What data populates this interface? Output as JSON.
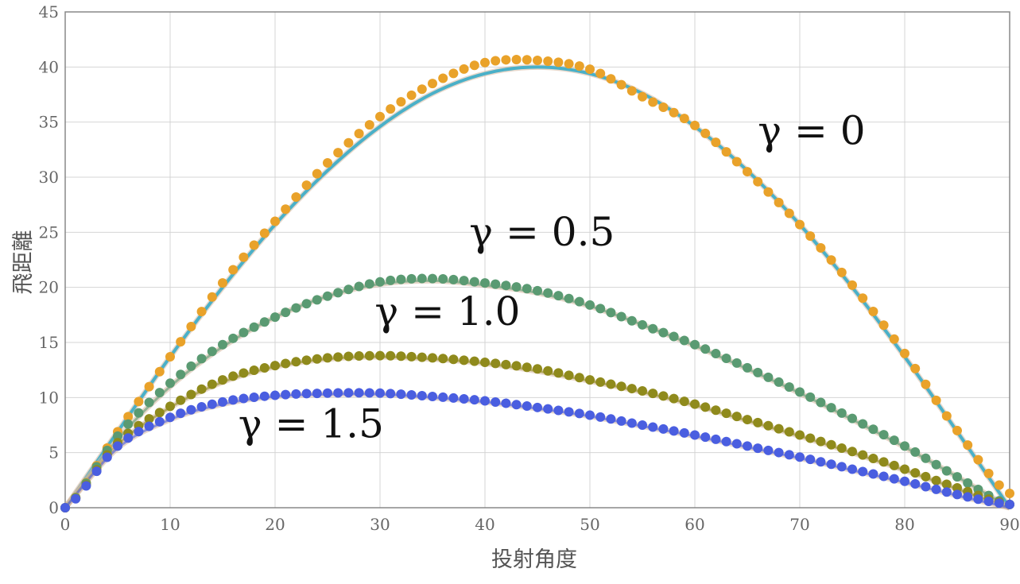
{
  "chart_data": {
    "type": "scatter",
    "title": "",
    "xlabel": "投射角度",
    "ylabel": "飛距離",
    "xlim": [
      0,
      90
    ],
    "ylim": [
      0,
      45
    ],
    "xticks": [
      0,
      10,
      20,
      30,
      40,
      50,
      60,
      70,
      80,
      90
    ],
    "yticks": [
      0,
      5,
      10,
      15,
      20,
      25,
      30,
      35,
      40,
      45
    ],
    "grid": true,
    "legend": "none",
    "series": [
      {
        "label": "γ = 0",
        "label_position": [
          66,
          33
        ],
        "gamma": 0,
        "color": "#e9a22a",
        "curve_color": "#4ab0c8",
        "x": [
          0,
          5,
          10,
          15,
          20,
          25,
          30,
          35,
          40,
          45,
          50,
          55,
          60,
          65,
          70,
          75,
          80,
          85,
          90
        ],
        "y": [
          0,
          6.9,
          13.7,
          20.4,
          26.0,
          31.3,
          35.5,
          38.5,
          40.4,
          40.6,
          39.8,
          37.3,
          34.7,
          30.5,
          25.7,
          20.2,
          14.0,
          7.0,
          1.3
        ],
        "curve": [
          0,
          6.9,
          13.7,
          20.0,
          25.7,
          30.6,
          34.6,
          37.6,
          39.4,
          40.0,
          39.4,
          37.6,
          34.6,
          30.6,
          25.7,
          20.0,
          13.7,
          6.9,
          0
        ]
      },
      {
        "label": "γ = 0.5",
        "label_position": [
          38.5,
          23.8
        ],
        "gamma": 0.5,
        "color": "#5a9a72",
        "x": [
          0,
          5,
          10,
          15,
          20,
          25,
          30,
          35,
          40,
          45,
          50,
          55,
          60,
          65,
          70,
          75,
          80,
          85,
          90
        ],
        "y": [
          0,
          6.5,
          11.3,
          14.8,
          17.3,
          19.2,
          20.5,
          20.8,
          20.4,
          19.7,
          18.4,
          16.6,
          14.8,
          12.7,
          10.5,
          8.1,
          5.6,
          2.8,
          0.3
        ],
        "curve": [
          0,
          6.2,
          11.0,
          14.6,
          17.3,
          19.2,
          20.3,
          20.6,
          20.2,
          19.5,
          18.3,
          16.6,
          14.7,
          12.6,
          10.4,
          8.0,
          5.5,
          2.8,
          0
        ]
      },
      {
        "label": "γ = 1.0",
        "label_position": [
          29.5,
          16.6
        ],
        "gamma": 1.0,
        "color": "#8f8a1c",
        "x": [
          0,
          5,
          10,
          15,
          20,
          25,
          30,
          35,
          40,
          45,
          50,
          55,
          60,
          65,
          70,
          75,
          80,
          85,
          90
        ],
        "y": [
          0,
          5.9,
          9.2,
          11.6,
          12.9,
          13.6,
          13.8,
          13.6,
          13.2,
          12.6,
          11.6,
          10.6,
          9.4,
          8.0,
          6.6,
          5.1,
          3.5,
          1.8,
          0.3
        ],
        "curve": [
          0,
          5.7,
          9.1,
          11.4,
          12.8,
          13.5,
          13.7,
          13.5,
          13.1,
          12.4,
          11.5,
          10.5,
          9.3,
          7.9,
          6.5,
          5.0,
          3.4,
          1.7,
          0
        ]
      },
      {
        "label": "γ = 1.5",
        "label_position": [
          16.5,
          6.4
        ],
        "gamma": 1.5,
        "color": "#4a5ee0",
        "x": [
          0,
          5,
          10,
          15,
          20,
          25,
          30,
          35,
          40,
          45,
          50,
          55,
          60,
          65,
          70,
          75,
          80,
          85,
          90
        ],
        "y": [
          0,
          5.6,
          8.2,
          9.6,
          10.2,
          10.4,
          10.4,
          10.1,
          9.7,
          9.1,
          8.4,
          7.5,
          6.6,
          5.6,
          4.6,
          3.5,
          2.4,
          1.2,
          0.3
        ],
        "curve": [
          0,
          5.4,
          8.0,
          9.4,
          10.1,
          10.3,
          10.3,
          10.0,
          9.6,
          9.0,
          8.3,
          7.4,
          6.5,
          5.5,
          4.5,
          3.4,
          2.3,
          1.1,
          0
        ]
      }
    ]
  }
}
